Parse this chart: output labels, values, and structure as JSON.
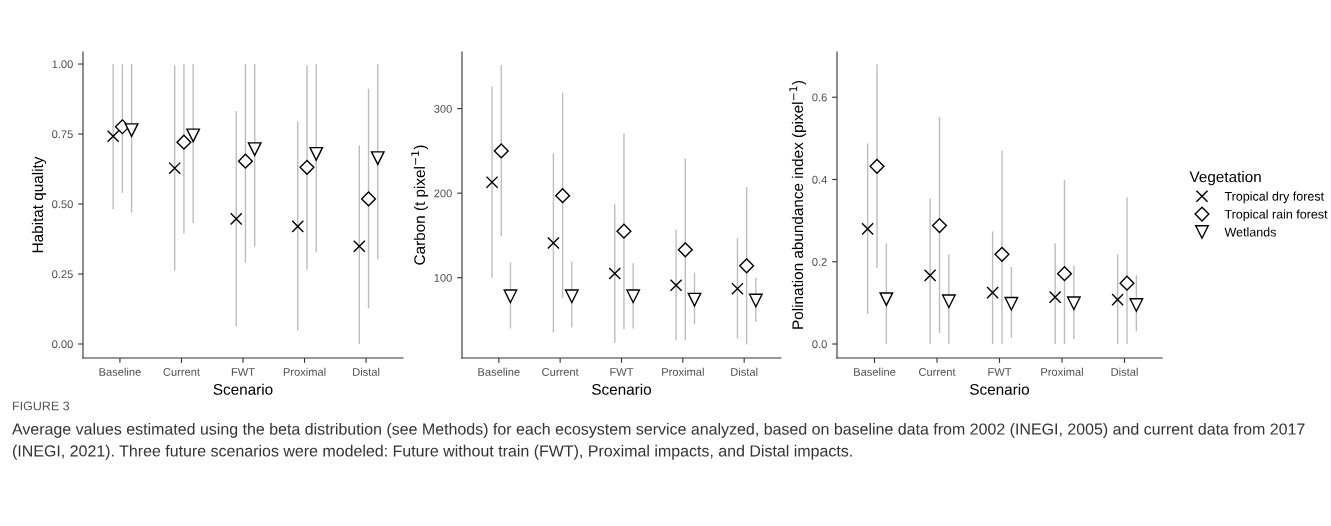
{
  "chart_data": [
    {
      "type": "scatter",
      "ylabel": "Habitat quality",
      "xlabel": "Scenario",
      "categories": [
        "Baseline",
        "Current",
        "FWT",
        "Proximal",
        "Distal"
      ],
      "ylim": [
        -0.05,
        1.043
      ],
      "yticks": [
        {
          "value": 0,
          "label": "0.00"
        },
        {
          "value": 0.25,
          "label": "0.25"
        },
        {
          "value": 0.5,
          "label": "0.50"
        },
        {
          "value": 0.75,
          "label": "0.75"
        },
        {
          "value": 1,
          "label": "1.00"
        }
      ],
      "grid": false,
      "legend": false,
      "series": [
        {
          "color": "#000000",
          "marker": "cross",
          "values": [
            0.742,
            0.628,
            0.447,
            0.42,
            0.349
          ],
          "errors": [
            [
              0.482,
              1.0
            ],
            [
              0.262,
              0.995
            ],
            [
              0.063,
              0.831
            ],
            [
              0.048,
              0.796
            ],
            [
              0.0,
              0.709
            ]
          ]
        },
        {
          "color": "#000000",
          "marker": "diamond",
          "values": [
            0.776,
            0.721,
            0.653,
            0.631,
            0.518
          ],
          "errors": [
            [
              0.54,
              1.0
            ],
            [
              0.395,
              1.0
            ],
            [
              0.291,
              1.0
            ],
            [
              0.265,
              0.995
            ],
            [
              0.127,
              0.912
            ]
          ]
        },
        {
          "color": "#000000",
          "marker": "triangle",
          "values": [
            0.764,
            0.745,
            0.696,
            0.679,
            0.664
          ],
          "errors": [
            [
              0.47,
              1.0
            ],
            [
              0.431,
              1.0
            ],
            [
              0.348,
              1.0
            ],
            [
              0.329,
              1.0
            ],
            [
              0.303,
              1.0
            ]
          ]
        }
      ],
      "annotations": [
        "FIGURE 3",
        "Average values estimated using the beta distribution (see Methods) for each ecosystem service analyzed, based on baseline data from 2002 (INEGI, 2005) and current data from 2017 (INEGI, 2021). Three future scenarios were modeled: Future without train (FWT), Proximal impacts, and Distal impacts."
      ]
    },
    {
      "type": "scatter",
      "ylabel": "Carbon (t pixel$^{−1}$)",
      "xlabel": "Scenario",
      "categories": [
        "Baseline",
        "Current",
        "FWT",
        "Proximal",
        "Distal"
      ],
      "ylim": [
        5,
        367
      ],
      "yticks": [
        100,
        200,
        300
      ],
      "grid": false,
      "legend": false,
      "series": [
        {
          "color": "#000000",
          "marker": "cross",
          "values": [
            213,
            141,
            105,
            91,
            87
          ],
          "errors": [
            [
              100,
              326
            ],
            [
              35,
              247
            ],
            [
              23,
              187
            ],
            [
              26,
              157
            ],
            [
              28,
              147
            ]
          ]
        },
        {
          "color": "#000000",
          "marker": "diamond",
          "values": [
            250,
            197,
            155,
            133,
            114
          ],
          "errors": [
            [
              149,
              352
            ],
            [
              76,
              319
            ],
            [
              39,
              271
            ],
            [
              26,
              241
            ],
            [
              21,
              207
            ]
          ]
        },
        {
          "color": "#000000",
          "marker": "triangle",
          "values": [
            78,
            78,
            78,
            74,
            73
          ],
          "errors": [
            [
              40,
              118
            ],
            [
              41,
              119
            ],
            [
              40,
              117
            ],
            [
              45,
              106
            ],
            [
              48,
              100
            ]
          ]
        }
      ]
    },
    {
      "type": "scatter",
      "ylabel": "Polination abundance index (pixel$^{−1}$)",
      "xlabel": "Scenario",
      "categories": [
        "Baseline",
        "Current",
        "FWT",
        "Proximal",
        "Distal"
      ],
      "ylim": [
        -0.034,
        0.71
      ],
      "yticks": [
        {
          "value": 0,
          "label": "0.0"
        },
        {
          "value": 0.2,
          "label": "0.2"
        },
        {
          "value": 0.4,
          "label": "0.4"
        },
        {
          "value": 0.6,
          "label": "0.6"
        }
      ],
      "grid": false,
      "legend": "right",
      "legend_title": "Vegetation",
      "series": [
        {
          "name": "Tropical dry forest",
          "color": "#000000",
          "marker": "cross",
          "values": [
            0.28,
            0.167,
            0.125,
            0.114,
            0.108
          ],
          "errors": [
            [
              0.073,
              0.488
            ],
            [
              0.0,
              0.354
            ],
            [
              0.0,
              0.274
            ],
            [
              0.0,
              0.245
            ],
            [
              0.0,
              0.218
            ]
          ]
        },
        {
          "name": "Tropical rain forest",
          "color": "#000000",
          "marker": "diamond",
          "values": [
            0.432,
            0.288,
            0.218,
            0.171,
            0.148
          ],
          "errors": [
            [
              0.184,
              0.68
            ],
            [
              0.027,
              0.552
            ],
            [
              0.0,
              0.47
            ],
            [
              0.0,
              0.399
            ],
            [
              0.0,
              0.356
            ]
          ]
        },
        {
          "name": "Wetlands",
          "color": "#000000",
          "marker": "triangle",
          "values": [
            0.109,
            0.104,
            0.098,
            0.099,
            0.095
          ],
          "errors": [
            [
              0.0,
              0.245
            ],
            [
              0.0,
              0.218
            ],
            [
              0.015,
              0.187
            ],
            [
              0.012,
              0.191
            ],
            [
              0.031,
              0.167
            ]
          ]
        }
      ]
    }
  ]
}
